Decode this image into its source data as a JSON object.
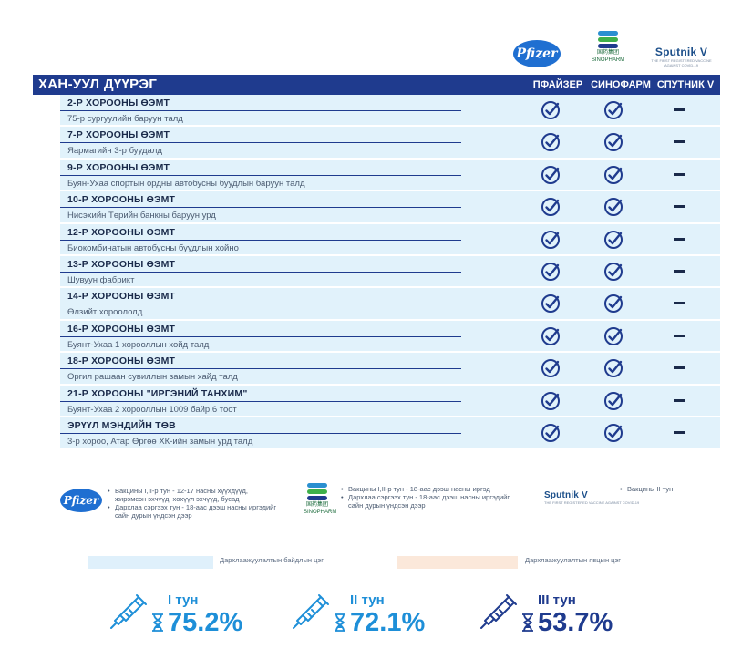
{
  "logos": {
    "pfizer": "Pfizer",
    "sinopharm_cn": "国药集团",
    "sinopharm": "SINOPHARM",
    "sputnik": "Sputnik V",
    "sputnik_sub": "THE FIRST REGISTERED VACCINE AGAINST COVID-19"
  },
  "table": {
    "region": "ХАН-УУЛ ДҮҮРЭГ",
    "columns": [
      "ПФАЙЗЕР",
      "СИНОФАРМ",
      "СПУТНИК V"
    ],
    "rows": [
      {
        "title": "2-Р ХОРООНЫ ӨЭМТ",
        "address": "75-р сургуулийн баруун талд",
        "pfizer": true,
        "sinopharm": true,
        "sputnik": false
      },
      {
        "title": "7-Р ХОРООНЫ ӨЭМТ",
        "address": "Яармагийн 3-р буудалд",
        "pfizer": true,
        "sinopharm": true,
        "sputnik": false
      },
      {
        "title": "9-Р ХОРООНЫ ӨЭМТ",
        "address": "Буян-Ухаа спортын ордны автобусны буудлын баруун талд",
        "pfizer": true,
        "sinopharm": true,
        "sputnik": false
      },
      {
        "title": "10-Р ХОРООНЫ ӨЭМТ",
        "address": "Нисэхийн Төрийн банкны баруун урд",
        "pfizer": true,
        "sinopharm": true,
        "sputnik": false
      },
      {
        "title": "12-Р ХОРООНЫ ӨЭМТ",
        "address": "Биокомбинатын автобусны буудлын хойно",
        "pfizer": true,
        "sinopharm": true,
        "sputnik": false
      },
      {
        "title": "13-Р ХОРООНЫ ӨЭМТ",
        "address": "Шувуун фабрикт",
        "pfizer": true,
        "sinopharm": true,
        "sputnik": false
      },
      {
        "title": "14-Р ХОРООНЫ ӨЭМТ",
        "address": "Өлзийт хороололд",
        "pfizer": true,
        "sinopharm": true,
        "sputnik": false
      },
      {
        "title": "16-Р ХОРООНЫ ӨЭМТ",
        "address": "Буянт-Ухаа 1 хорооллын хойд талд",
        "pfizer": true,
        "sinopharm": true,
        "sputnik": false
      },
      {
        "title": "18-Р ХОРООНЫ ӨЭМТ",
        "address": "Оргил рашаан сувиллын замын хайд  талд",
        "pfizer": true,
        "sinopharm": true,
        "sputnik": false
      },
      {
        "title": "21-Р ХОРООНЫ \"ИРГЭНИЙ ТАНХИМ\"",
        "address": "Буянт-Ухаа 2 хорооллын 1009 байр,6 тоот",
        "pfizer": true,
        "sinopharm": true,
        "sputnik": false
      },
      {
        "title": "ЭРҮҮЛ МЭНДИЙН ТӨВ",
        "address": "3-р хороо, Атар Өргөө ХК-ийн замын урд талд",
        "pfizer": true,
        "sinopharm": true,
        "sputnik": false
      }
    ]
  },
  "legend": {
    "pfizer": [
      "Вакцины I,II-р тун - 12-17 насны хүүхдүүд, жирэмсэн эхчүүд, хөхүүл эхчүүд, бусад",
      "Дархлаа сэргээх тун - 18-аас дээш насны иргэдийг сайн дурын үндсэн дээр"
    ],
    "sinopharm": [
      "Вакцины I,II-р тун - 18-аас дээш насны иргэд",
      "Дархлаа сэргээх тун - 18-аас дээш насны иргэдийг сайн дурын үндсэн дээр"
    ],
    "sputnik": [
      "Вакцины II тун"
    ]
  },
  "progress": {
    "target_label": "Дархлаажуулалтын байдлын цэг",
    "current_label": "Дархлаажуулалтын явцын цэг",
    "target_color": "#dff0fb",
    "current_color": "#fbe8da"
  },
  "doses": [
    {
      "name": "I тун",
      "value": "75.2%",
      "color": "#1e8fd8"
    },
    {
      "name": "II тун",
      "value": "72.1%",
      "color": "#1e8fd8"
    },
    {
      "name": "III тун",
      "value": "53.7%",
      "color": "#1f3b8e"
    }
  ],
  "colors": {
    "header_bg": "#1f3b8e",
    "row_bg": "#e1f2fb",
    "check": "#1f3b8e"
  }
}
